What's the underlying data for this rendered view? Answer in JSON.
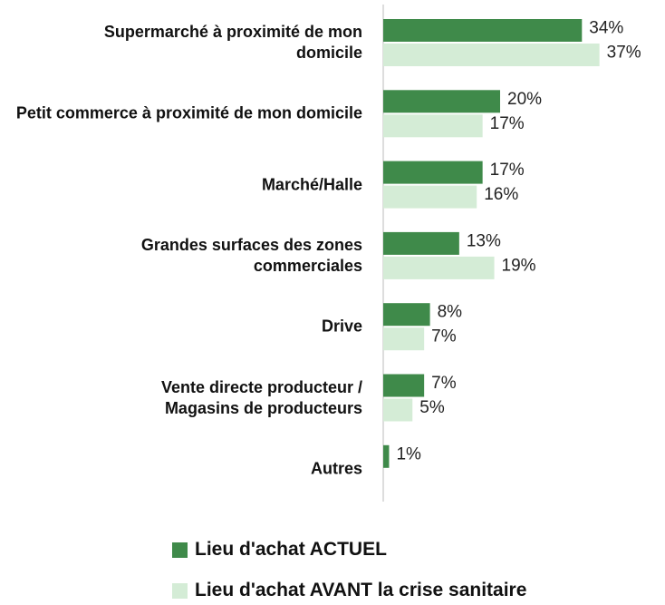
{
  "chart_data": {
    "type": "hbar",
    "categories": [
      "Supermarché à proximité de mon domicile",
      "Petit commerce à proximité de mon domicile",
      "Marché/Halle",
      "Grandes surfaces des zones commerciales",
      "Drive",
      "Vente directe producteur / Magasins de producteurs",
      "Autres"
    ],
    "series": [
      {
        "name": "Lieu d'achat ACTUEL",
        "color": "#3f8a4a",
        "values": [
          34,
          20,
          17,
          13,
          8,
          7,
          1
        ],
        "value_labels": [
          "34%",
          "20%",
          "17%",
          "13%",
          "8%",
          "7%",
          "1%"
        ]
      },
      {
        "name": "Lieu d'achat AVANT la crise sanitaire",
        "color": "#d4ecd6",
        "values": [
          37,
          17,
          16,
          19,
          7,
          5,
          null
        ],
        "value_labels": [
          "37%",
          "17%",
          "16%",
          "19%",
          "7%",
          "5%",
          null
        ]
      }
    ],
    "xlim": [
      0,
      40
    ],
    "legend": "bottom"
  }
}
